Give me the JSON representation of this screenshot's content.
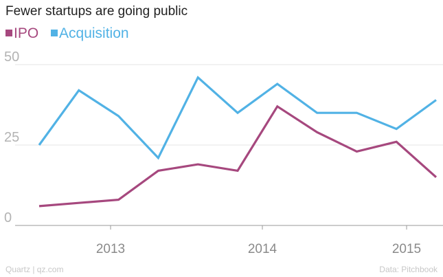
{
  "chart_data": {
    "type": "line",
    "title": "Fewer startups are going public",
    "x": [
      "2012Q3",
      "2012Q4",
      "2013Q1",
      "2013Q2",
      "2013Q3",
      "2013Q4",
      "2014Q1",
      "2014Q2",
      "2014Q3",
      "2014Q4",
      "2015Q1"
    ],
    "x_tick_labels": [
      "2013",
      "2014",
      "2015"
    ],
    "y_ticks": [
      0,
      25,
      50
    ],
    "ylim": [
      0,
      52
    ],
    "grid": "horizontal",
    "legend": "top-left",
    "series": [
      {
        "name": "IPO",
        "color": "#a6487e",
        "values": [
          6,
          7,
          8,
          17,
          19,
          17,
          37,
          29,
          23,
          26,
          15
        ]
      },
      {
        "name": "Acquisition",
        "color": "#51b2e5",
        "values": [
          25,
          42,
          34,
          21,
          46,
          35,
          44,
          35,
          35,
          30,
          39
        ]
      }
    ]
  },
  "footer": {
    "left": "Quartz | qz.com",
    "right": "Data: Pitchbook"
  }
}
